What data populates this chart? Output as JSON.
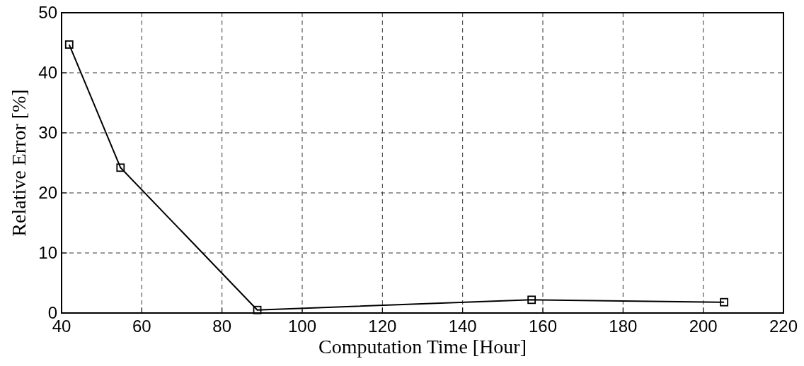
{
  "chart_data": {
    "type": "line",
    "xlabel": "Computation Time [Hour]",
    "ylabel": "Relative Error [%]",
    "x": [
      41.9,
      54.7,
      88.8,
      157.2,
      205.2
    ],
    "series": [
      {
        "color": "#000000",
        "values": [
          44.7,
          24.2,
          0.5,
          2.2,
          1.8
        ]
      }
    ],
    "xlim": [
      40,
      220
    ],
    "xticks": [
      40,
      60,
      80,
      100,
      120,
      140,
      160,
      180,
      200,
      220
    ],
    "ylim": [
      0,
      50
    ],
    "yticks": [
      0,
      10,
      20,
      30,
      40,
      50
    ],
    "grid": true,
    "marker": "square",
    "line_style": "solid"
  }
}
